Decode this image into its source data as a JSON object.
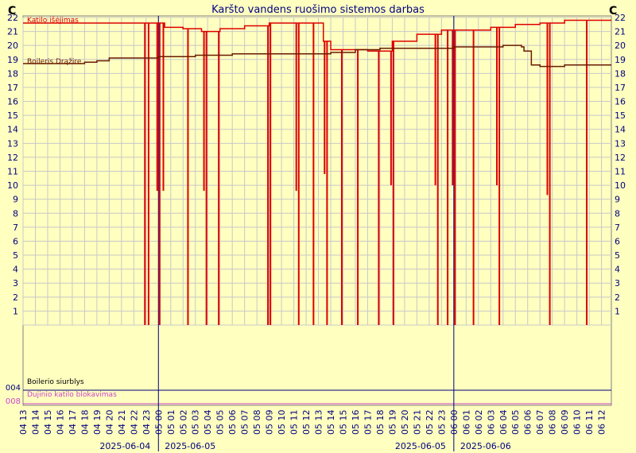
{
  "chart_data": {
    "type": "line",
    "title": "Karšto vandens ruošimo sistemos darbas",
    "y_unit_left": "C",
    "y_unit_right": "C",
    "ylim": [
      0,
      22
    ],
    "y_ticks": [
      1,
      2,
      3,
      4,
      5,
      6,
      7,
      8,
      9,
      10,
      11,
      12,
      13,
      14,
      15,
      16,
      17,
      18,
      19,
      20,
      21,
      22
    ],
    "x_range_hours": [
      13,
      60.8
    ],
    "x_ticks": [
      {
        "h": 13,
        "label": "04 13"
      },
      {
        "h": 14,
        "label": "04 14"
      },
      {
        "h": 15,
        "label": "04 15"
      },
      {
        "h": 16,
        "label": "04 16"
      },
      {
        "h": 17,
        "label": "04 17"
      },
      {
        "h": 18,
        "label": "04 18"
      },
      {
        "h": 19,
        "label": "04 19"
      },
      {
        "h": 20,
        "label": "04 20"
      },
      {
        "h": 21,
        "label": "04 21"
      },
      {
        "h": 22,
        "label": "04 22"
      },
      {
        "h": 23,
        "label": "04 23"
      },
      {
        "h": 24,
        "label": "05 00"
      },
      {
        "h": 25,
        "label": "05 01"
      },
      {
        "h": 26,
        "label": "05 02"
      },
      {
        "h": 27,
        "label": "05 03"
      },
      {
        "h": 28,
        "label": "05 04"
      },
      {
        "h": 29,
        "label": "05 05"
      },
      {
        "h": 30,
        "label": "05 06"
      },
      {
        "h": 31,
        "label": "05 07"
      },
      {
        "h": 32,
        "label": "05 08"
      },
      {
        "h": 33,
        "label": "05 09"
      },
      {
        "h": 34,
        "label": "05 10"
      },
      {
        "h": 35,
        "label": "05 11"
      },
      {
        "h": 36,
        "label": "05 12"
      },
      {
        "h": 37,
        "label": "05 13"
      },
      {
        "h": 38,
        "label": "05 14"
      },
      {
        "h": 39,
        "label": "05 15"
      },
      {
        "h": 40,
        "label": "05 16"
      },
      {
        "h": 41,
        "label": "05 17"
      },
      {
        "h": 42,
        "label": "05 18"
      },
      {
        "h": 43,
        "label": "05 19"
      },
      {
        "h": 44,
        "label": "05 20"
      },
      {
        "h": 45,
        "label": "05 21"
      },
      {
        "h": 46,
        "label": "05 22"
      },
      {
        "h": 47,
        "label": "05 23"
      },
      {
        "h": 48,
        "label": "06 00"
      },
      {
        "h": 49,
        "label": "06 01"
      },
      {
        "h": 50,
        "label": "06 02"
      },
      {
        "h": 51,
        "label": "06 03"
      },
      {
        "h": 52,
        "label": "06 04"
      },
      {
        "h": 53,
        "label": "06 05"
      },
      {
        "h": 54,
        "label": "06 06"
      },
      {
        "h": 55,
        "label": "06 07"
      },
      {
        "h": 56,
        "label": "06 08"
      },
      {
        "h": 57,
        "label": "06 09"
      },
      {
        "h": 58,
        "label": "06 10"
      },
      {
        "h": 59,
        "label": "06 11"
      },
      {
        "h": 60,
        "label": "06 12"
      }
    ],
    "day_boundaries": [
      {
        "h": 24,
        "label_left": "2025-06-04",
        "label_right": "2025-06-05"
      },
      {
        "h": 48,
        "label_left": "2025-06-05",
        "label_right": "2025-06-06"
      }
    ],
    "grid": true,
    "legend_placement": "inline-top-left",
    "colors": {
      "background": "#ffffc0",
      "grid": "#c8c8c8",
      "axis_text": "#000080",
      "day_line": "#000080",
      "katilo": "#dd0000",
      "boilerio": "#6a1a00",
      "siurblys": "#000000",
      "blokavimas": "#cc44cc"
    },
    "series": [
      {
        "name": "Katilo išėjimas",
        "color": "#dd0000",
        "points": [
          [
            13,
            21.6
          ],
          [
            23,
            21.6
          ],
          [
            24.5,
            21.3
          ],
          [
            26,
            21.2
          ],
          [
            27.5,
            21.0
          ],
          [
            29,
            21.2
          ],
          [
            31,
            21.4
          ],
          [
            33,
            21.6
          ],
          [
            36,
            21.6
          ],
          [
            37,
            21.6
          ],
          [
            37.4,
            20.3
          ],
          [
            38,
            19.7
          ],
          [
            41,
            19.6
          ],
          [
            43,
            20.3
          ],
          [
            45,
            20.8
          ],
          [
            47,
            21.1
          ],
          [
            49,
            21.1
          ],
          [
            51,
            21.3
          ],
          [
            53,
            21.5
          ],
          [
            55,
            21.6
          ],
          [
            57,
            21.8
          ],
          [
            60.8,
            21.8
          ]
        ],
        "drops": [
          {
            "h": 22.9,
            "to": 0
          },
          {
            "h": 23.2,
            "to": 0
          },
          {
            "h": 23.9,
            "to": 9.6
          },
          {
            "h": 24.1,
            "to": 0
          },
          {
            "h": 24.4,
            "to": 9.6
          },
          {
            "h": 26.4,
            "to": 0
          },
          {
            "h": 27.7,
            "to": 9.6
          },
          {
            "h": 27.9,
            "to": 0
          },
          {
            "h": 28.9,
            "to": 0
          },
          {
            "h": 32.9,
            "to": 0
          },
          {
            "h": 33.1,
            "to": 0
          },
          {
            "h": 35.2,
            "to": 9.6
          },
          {
            "h": 35.4,
            "to": 0
          },
          {
            "h": 36.6,
            "to": 0
          },
          {
            "h": 37.5,
            "to": 10.8
          },
          {
            "h": 37.7,
            "to": 0
          },
          {
            "h": 38.9,
            "to": 0
          },
          {
            "h": 40.2,
            "to": 0
          },
          {
            "h": 41.9,
            "to": 0
          },
          {
            "h": 42.9,
            "to": 10
          },
          {
            "h": 43.1,
            "to": 0
          },
          {
            "h": 46.5,
            "to": 10
          },
          {
            "h": 46.7,
            "to": 0
          },
          {
            "h": 47.5,
            "to": 0
          },
          {
            "h": 47.9,
            "to": 10
          },
          {
            "h": 48.1,
            "to": 0
          },
          {
            "h": 49.6,
            "to": 0
          },
          {
            "h": 51.5,
            "to": 10
          },
          {
            "h": 51.7,
            "to": 0
          },
          {
            "h": 55.6,
            "to": 9.3
          },
          {
            "h": 55.8,
            "to": 0
          },
          {
            "h": 58.8,
            "to": 0
          }
        ]
      },
      {
        "name": "Boileris Drąžire",
        "color": "#6a1a00",
        "points": [
          [
            13,
            18.7
          ],
          [
            17,
            18.7
          ],
          [
            18,
            18.8
          ],
          [
            19,
            18.9
          ],
          [
            20,
            19.1
          ],
          [
            21,
            19.1
          ],
          [
            22,
            19.1
          ],
          [
            24,
            19.2
          ],
          [
            27,
            19.3
          ],
          [
            30,
            19.4
          ],
          [
            33,
            19.4
          ],
          [
            36,
            19.4
          ],
          [
            38,
            19.5
          ],
          [
            40,
            19.7
          ],
          [
            42,
            19.8
          ],
          [
            44,
            19.8
          ],
          [
            46,
            19.8
          ],
          [
            48,
            19.9
          ],
          [
            50,
            19.9
          ],
          [
            52,
            20.0
          ],
          [
            53,
            20.0
          ],
          [
            53.5,
            19.9
          ],
          [
            53.7,
            19.6
          ],
          [
            54,
            19.6
          ],
          [
            54.3,
            18.6
          ],
          [
            55,
            18.5
          ],
          [
            57,
            18.6
          ],
          [
            60.8,
            18.6
          ]
        ]
      },
      {
        "name": "Boilerio siurblys",
        "color": "#000000",
        "points": []
      },
      {
        "name": "Dujinio katilo blokavimas",
        "color": "#cc44cc",
        "points": []
      }
    ],
    "lower_panel_ticks": [
      "004",
      "008"
    ]
  }
}
